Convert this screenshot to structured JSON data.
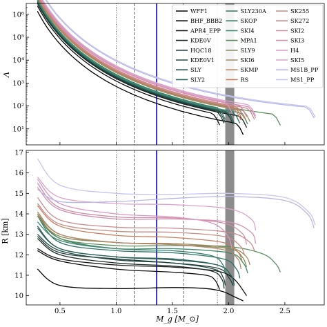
{
  "chart_data": [
    {
      "type": "line",
      "ylabel": "Λ",
      "yscale": "log",
      "ylim": [
        2,
        3000000
      ],
      "xlim": [
        0.2,
        2.85
      ],
      "yticks": [
        10,
        100,
        1000,
        10000,
        100000,
        1000000
      ],
      "ytick_labels": [
        "10¹",
        "10²",
        "10³",
        "10⁴",
        "10⁵",
        "10⁶"
      ],
      "grid": false,
      "legend_position": "upper-right",
      "reference_lines": [
        {
          "x": 1.0,
          "style": "dotted"
        },
        {
          "x": 1.16,
          "style": "dashed"
        },
        {
          "x": 1.36,
          "style": "solid",
          "color": "#1f1fc8"
        },
        {
          "x": 1.6,
          "style": "dashed"
        },
        {
          "x": 1.9,
          "style": "dotted"
        }
      ],
      "shaded_band": {
        "x_range": [
          1.97,
          2.05
        ],
        "color": "#8c8c8c"
      },
      "series": [
        {
          "name": "WFF1",
          "color": "#000000",
          "m_max": 2.13,
          "lambda_at_1_4": 110
        },
        {
          "name": "BHF_BBB2",
          "color": "#0c0c0c",
          "m_max": 1.92,
          "lambda_at_1_4": 190
        },
        {
          "name": "APR4_EPP",
          "color": "#161616",
          "m_max": 2.16,
          "lambda_at_1_4": 240
        },
        {
          "name": "KDE0V",
          "color": "#1e2c28",
          "m_max": 1.96,
          "lambda_at_1_4": 250
        },
        {
          "name": "HQC18",
          "color": "#203a36",
          "m_max": 2.04,
          "lambda_at_1_4": 270
        },
        {
          "name": "KDE0V1",
          "color": "#224842",
          "m_max": 1.97,
          "lambda_at_1_4": 280
        },
        {
          "name": "SLY",
          "color": "#265650",
          "m_max": 2.05,
          "lambda_at_1_4": 300
        },
        {
          "name": "SLY2",
          "color": "#2a645c",
          "m_max": 2.05,
          "lambda_at_1_4": 300
        },
        {
          "name": "SLY230A",
          "color": "#2e7266",
          "m_max": 2.1,
          "lambda_at_1_4": 330
        },
        {
          "name": "SKOP",
          "color": "#357e6a",
          "m_max": 1.97,
          "lambda_at_1_4": 370
        },
        {
          "name": "SKI4",
          "color": "#3f8a6c",
          "m_max": 2.17,
          "lambda_at_1_4": 340
        },
        {
          "name": "MPA1",
          "color": "#5a8c5c",
          "m_max": 2.46,
          "lambda_at_1_4": 480
        },
        {
          "name": "SLY9",
          "color": "#7e8e5c",
          "m_max": 2.16,
          "lambda_at_1_4": 440
        },
        {
          "name": "SKI6",
          "color": "#a08a62",
          "m_max": 2.19,
          "lambda_at_1_4": 460
        },
        {
          "name": "SKMP",
          "color": "#b8886a",
          "m_max": 2.11,
          "lambda_at_1_4": 460
        },
        {
          "name": "RS",
          "color": "#c47e60",
          "m_max": 2.12,
          "lambda_at_1_4": 520
        },
        {
          "name": "SK255",
          "color": "#c98a82",
          "m_max": 2.14,
          "lambda_at_1_4": 570
        },
        {
          "name": "SK272",
          "color": "#cc8c8e",
          "m_max": 2.23,
          "lambda_at_1_4": 610
        },
        {
          "name": "SKI2",
          "color": "#d08ea4",
          "m_max": 2.16,
          "lambda_at_1_4": 700
        },
        {
          "name": "SKI3",
          "color": "#d48fb2",
          "m_max": 2.24,
          "lambda_at_1_4": 720
        },
        {
          "name": "H4",
          "color": "#d898c0",
          "m_max": 2.03,
          "lambda_at_1_4": 800
        },
        {
          "name": "SKI5",
          "color": "#dda2cc",
          "m_max": 2.24,
          "lambda_at_1_4": 880
        },
        {
          "name": "MS1B_PP",
          "color": "#b8b8e6",
          "m_max": 2.76,
          "lambda_at_1_4": 1400
        },
        {
          "name": "MS1_PP",
          "color": "#c6c6ee",
          "m_max": 2.77,
          "lambda_at_1_4": 1550
        }
      ]
    },
    {
      "type": "line",
      "xlabel": "M_g [M_⊙]",
      "ylabel": "R [km]",
      "xlim": [
        0.2,
        2.85
      ],
      "ylim": [
        9.55,
        17.1
      ],
      "xticks": [
        0.5,
        1.0,
        1.5,
        2.0,
        2.5
      ],
      "xtick_labels": [
        "0.5",
        "1.0",
        "1.5",
        "2.0",
        "2.5"
      ],
      "yticks": [
        10,
        11,
        12,
        13,
        14,
        15,
        16,
        17
      ],
      "ytick_labels": [
        "10",
        "11",
        "12",
        "13",
        "14",
        "15",
        "16",
        "17"
      ],
      "grid": false,
      "reference_lines": [
        {
          "x": 1.0,
          "style": "dotted"
        },
        {
          "x": 1.16,
          "style": "dashed"
        },
        {
          "x": 1.36,
          "style": "solid",
          "color": "#1f1fc8"
        },
        {
          "x": 1.6,
          "style": "dashed"
        },
        {
          "x": 1.9,
          "style": "dotted"
        }
      ],
      "shaded_band": {
        "x_range": [
          1.97,
          2.05
        ],
        "color": "#8c8c8c"
      },
      "series": [
        {
          "name": "WFF1",
          "points": [
            [
              0.3,
              11.3
            ],
            [
              0.5,
              10.5
            ],
            [
              1.0,
              10.35
            ],
            [
              1.5,
              10.4
            ],
            [
              1.8,
              10.35
            ],
            [
              1.95,
              10.2
            ],
            [
              2.05,
              9.95
            ],
            [
              2.13,
              9.75
            ]
          ]
        },
        {
          "name": "BHF_BBB2",
          "points": [
            [
              0.3,
              12.2
            ],
            [
              0.5,
              11.7
            ],
            [
              1.0,
              11.3
            ],
            [
              1.5,
              11.15
            ],
            [
              1.8,
              11.0
            ],
            [
              1.88,
              10.75
            ],
            [
              1.92,
              10.3
            ]
          ]
        },
        {
          "name": "APR4_EPP",
          "points": [
            [
              0.3,
              12.3
            ],
            [
              0.5,
              11.8
            ],
            [
              1.0,
              11.5
            ],
            [
              1.5,
              11.4
            ],
            [
              1.9,
              11.2
            ],
            [
              2.05,
              10.8
            ],
            [
              2.16,
              10.0
            ]
          ]
        },
        {
          "name": "KDE0V",
          "points": [
            [
              0.3,
              12.8
            ],
            [
              0.5,
              12.0
            ],
            [
              1.0,
              11.6
            ],
            [
              1.5,
              11.45
            ],
            [
              1.85,
              11.2
            ],
            [
              1.94,
              10.8
            ],
            [
              1.96,
              10.35
            ]
          ]
        },
        {
          "name": "HQC18",
          "points": [
            [
              0.3,
              12.9
            ],
            [
              0.5,
              12.1
            ],
            [
              1.0,
              11.8
            ],
            [
              1.5,
              11.6
            ],
            [
              1.9,
              11.35
            ],
            [
              2.0,
              10.9
            ],
            [
              2.04,
              10.5
            ]
          ]
        },
        {
          "name": "KDE0V1",
          "points": [
            [
              0.3,
              13.0
            ],
            [
              0.5,
              12.2
            ],
            [
              1.0,
              11.75
            ],
            [
              1.5,
              11.6
            ],
            [
              1.87,
              11.3
            ],
            [
              1.95,
              10.9
            ],
            [
              1.97,
              10.5
            ]
          ]
        },
        {
          "name": "SLY",
          "points": [
            [
              0.3,
              13.4
            ],
            [
              0.5,
              12.3
            ],
            [
              1.0,
              11.9
            ],
            [
              1.5,
              11.75
            ],
            [
              1.9,
              11.5
            ],
            [
              2.02,
              11.0
            ],
            [
              2.05,
              10.5
            ]
          ]
        },
        {
          "name": "SLY2",
          "points": [
            [
              0.3,
              13.3
            ],
            [
              0.5,
              12.3
            ],
            [
              1.0,
              11.9
            ],
            [
              1.5,
              11.8
            ],
            [
              1.9,
              11.5
            ],
            [
              2.02,
              11.0
            ],
            [
              2.05,
              10.55
            ]
          ]
        },
        {
          "name": "SLY230A",
          "points": [
            [
              0.3,
              13.9
            ],
            [
              0.5,
              12.6
            ],
            [
              1.0,
              12.2
            ],
            [
              1.5,
              12.1
            ],
            [
              1.95,
              11.8
            ],
            [
              2.07,
              11.3
            ],
            [
              2.1,
              10.85
            ]
          ]
        },
        {
          "name": "SKOP",
          "points": [
            [
              0.3,
              14.0
            ],
            [
              0.5,
              12.8
            ],
            [
              1.0,
              12.3
            ],
            [
              1.5,
              12.2
            ],
            [
              1.85,
              11.95
            ],
            [
              1.95,
              11.5
            ],
            [
              1.97,
              11.1
            ]
          ]
        },
        {
          "name": "SKI4",
          "points": [
            [
              0.3,
              13.6
            ],
            [
              0.5,
              12.7
            ],
            [
              1.0,
              12.3
            ],
            [
              1.5,
              12.3
            ],
            [
              2.0,
              12.1
            ],
            [
              2.13,
              11.6
            ],
            [
              2.17,
              11.1
            ]
          ]
        },
        {
          "name": "MPA1",
          "points": [
            [
              0.3,
              13.9
            ],
            [
              0.5,
              12.8
            ],
            [
              1.0,
              12.45
            ],
            [
              1.5,
              12.45
            ],
            [
              2.0,
              12.4
            ],
            [
              2.3,
              12.05
            ],
            [
              2.42,
              11.55
            ],
            [
              2.46,
              11.15
            ]
          ]
        },
        {
          "name": "SLY9",
          "points": [
            [
              0.3,
              13.9
            ],
            [
              0.5,
              12.9
            ],
            [
              1.0,
              12.6
            ],
            [
              1.5,
              12.5
            ],
            [
              2.0,
              12.3
            ],
            [
              2.12,
              11.9
            ],
            [
              2.16,
              11.4
            ]
          ]
        },
        {
          "name": "SKI6",
          "points": [
            [
              0.3,
              14.1
            ],
            [
              0.5,
              13.0
            ],
            [
              1.0,
              12.6
            ],
            [
              1.5,
              12.55
            ],
            [
              2.0,
              12.35
            ],
            [
              2.15,
              11.95
            ],
            [
              2.19,
              11.5
            ]
          ]
        },
        {
          "name": "SKMP",
          "points": [
            [
              0.3,
              14.0
            ],
            [
              0.5,
              13.0
            ],
            [
              1.0,
              12.6
            ],
            [
              1.5,
              12.5
            ],
            [
              1.95,
              12.25
            ],
            [
              2.08,
              11.8
            ],
            [
              2.11,
              11.3
            ]
          ]
        },
        {
          "name": "RS",
          "points": [
            [
              0.3,
              14.4
            ],
            [
              0.5,
              13.4
            ],
            [
              1.0,
              12.95
            ],
            [
              1.5,
              12.85
            ],
            [
              1.95,
              12.6
            ],
            [
              2.08,
              12.15
            ],
            [
              2.12,
              11.7
            ]
          ]
        },
        {
          "name": "SK255",
          "points": [
            [
              0.3,
              14.5
            ],
            [
              0.5,
              13.5
            ],
            [
              1.0,
              13.15
            ],
            [
              1.5,
              13.1
            ],
            [
              1.95,
              12.9
            ],
            [
              2.1,
              12.45
            ],
            [
              2.14,
              12.0
            ]
          ]
        },
        {
          "name": "SK272",
          "points": [
            [
              0.3,
              14.8
            ],
            [
              0.5,
              13.7
            ],
            [
              1.0,
              13.35
            ],
            [
              1.5,
              13.3
            ],
            [
              2.0,
              13.1
            ],
            [
              2.18,
              12.65
            ],
            [
              2.23,
              12.2
            ]
          ]
        },
        {
          "name": "SKI2",
          "points": [
            [
              0.3,
              15.5
            ],
            [
              0.5,
              14.3
            ],
            [
              1.0,
              13.85
            ],
            [
              1.5,
              13.8
            ],
            [
              1.95,
              13.55
            ],
            [
              2.12,
              13.05
            ],
            [
              2.16,
              12.5
            ]
          ]
        },
        {
          "name": "SKI3",
          "points": [
            [
              0.3,
              15.3
            ],
            [
              0.5,
              14.2
            ],
            [
              1.0,
              13.75
            ],
            [
              1.5,
              13.75
            ],
            [
              2.0,
              13.6
            ],
            [
              2.2,
              13.1
            ],
            [
              2.24,
              12.55
            ]
          ]
        },
        {
          "name": "H4",
          "points": [
            [
              0.3,
              15.7
            ],
            [
              0.5,
              14.5
            ],
            [
              1.0,
              14.0
            ],
            [
              1.5,
              13.85
            ],
            [
              1.85,
              13.55
            ],
            [
              1.99,
              12.95
            ],
            [
              2.03,
              12.3
            ]
          ]
        },
        {
          "name": "SKI5",
          "points": [
            [
              0.3,
              15.8
            ],
            [
              0.5,
              14.8
            ],
            [
              1.0,
              14.5
            ],
            [
              1.5,
              14.45
            ],
            [
              2.0,
              14.25
            ],
            [
              2.2,
              13.75
            ],
            [
              2.24,
              13.2
            ]
          ]
        },
        {
          "name": "MS1B_PP",
          "points": [
            [
              0.3,
              15.2
            ],
            [
              0.5,
              14.6
            ],
            [
              1.0,
              14.6
            ],
            [
              1.5,
              14.75
            ],
            [
              2.0,
              14.85
            ],
            [
              2.5,
              14.65
            ],
            [
              2.7,
              14.0
            ],
            [
              2.76,
              13.3
            ]
          ]
        },
        {
          "name": "MS1_PP",
          "points": [
            [
              0.3,
              16.7
            ],
            [
              0.5,
              15.4
            ],
            [
              1.0,
              15.0
            ],
            [
              1.5,
              14.95
            ],
            [
              2.0,
              15.0
            ],
            [
              2.5,
              14.8
            ],
            [
              2.71,
              14.1
            ],
            [
              2.77,
              13.45
            ]
          ]
        }
      ]
    }
  ]
}
